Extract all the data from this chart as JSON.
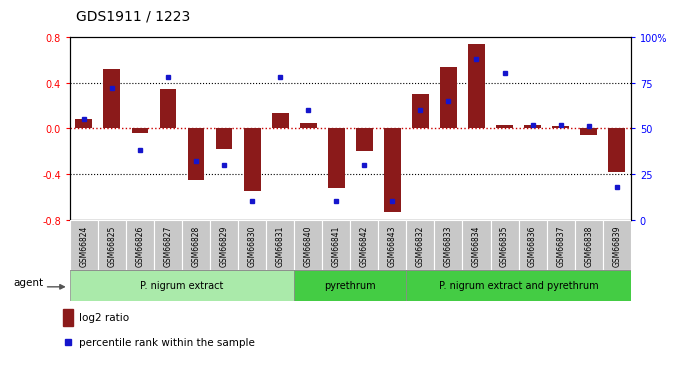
{
  "title": "GDS1911 / 1223",
  "samples": [
    "GSM66824",
    "GSM66825",
    "GSM66826",
    "GSM66827",
    "GSM66828",
    "GSM66829",
    "GSM66830",
    "GSM66831",
    "GSM66840",
    "GSM66841",
    "GSM66842",
    "GSM66843",
    "GSM66832",
    "GSM66833",
    "GSM66834",
    "GSM66835",
    "GSM66836",
    "GSM66837",
    "GSM66838",
    "GSM66839"
  ],
  "log2_ratio": [
    0.08,
    0.52,
    -0.04,
    0.34,
    -0.45,
    -0.18,
    -0.55,
    0.13,
    0.05,
    -0.52,
    -0.2,
    -0.73,
    0.3,
    0.54,
    0.74,
    0.03,
    0.03,
    0.02,
    -0.06,
    -0.38
  ],
  "percentile": [
    55,
    72,
    38,
    78,
    32,
    30,
    10,
    78,
    60,
    10,
    30,
    10,
    60,
    65,
    88,
    80,
    52,
    52,
    51,
    18
  ],
  "bar_color": "#8B1A1A",
  "dot_color": "#1515CC",
  "ylim_left": [
    -0.8,
    0.8
  ],
  "ylim_right": [
    0,
    100
  ],
  "yticks_left": [
    -0.8,
    -0.4,
    0.0,
    0.4,
    0.8
  ],
  "yticks_right": [
    0,
    25,
    50,
    75,
    100
  ],
  "ytick_labels_right": [
    "0",
    "25",
    "50",
    "75",
    "100%"
  ],
  "group_light_color": "#AAEAAA",
  "group_dark_color": "#44CC44",
  "group_border_color": "#888888",
  "tick_bg_color": "#C8C8C8",
  "agent_label": "agent",
  "legend_bar_label": "log2 ratio",
  "legend_dot_label": "percentile rank within the sample",
  "hline_color": "#CC0000"
}
